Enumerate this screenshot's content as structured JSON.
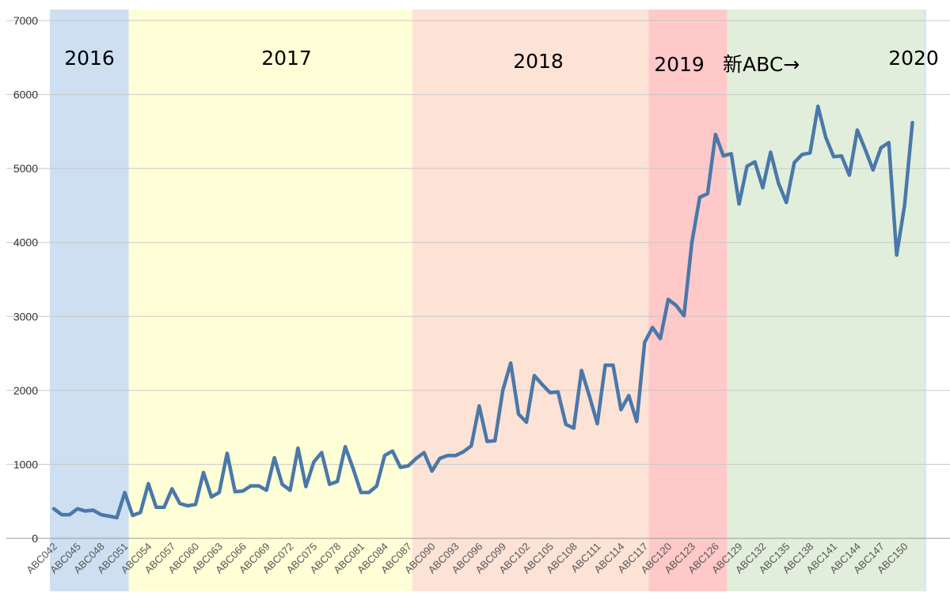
{
  "chart_data": {
    "type": "line",
    "title": "",
    "xlabel": "",
    "ylabel": "",
    "ylim": [
      0,
      7000
    ],
    "yticks": [
      0,
      1000,
      2000,
      3000,
      4000,
      5000,
      6000,
      7000
    ],
    "grid": true,
    "line_color": "#4a78a9",
    "x_start": 42,
    "x_prefix": "ABC",
    "x_tick_step": 3,
    "bands": [
      {
        "label": "2016",
        "from": 42,
        "to": 52,
        "color": "#cddff1"
      },
      {
        "label": "2017",
        "from": 52,
        "to": 88,
        "color": "#ffffd7"
      },
      {
        "label": "2018",
        "from": 88,
        "to": 118,
        "color": "#fde2d6"
      },
      {
        "label": "2019",
        "from": 118,
        "to": 128,
        "color": "#ffc9c9"
      },
      {
        "label": "新ABC→",
        "from": 128,
        "to": 153,
        "color": "#e1eedb"
      },
      {
        "label": "2020",
        "from": 153,
        "to": 155,
        "color": "#cfe9f9"
      }
    ],
    "values": [
      400,
      320,
      320,
      400,
      370,
      380,
      320,
      300,
      280,
      620,
      310,
      350,
      740,
      420,
      420,
      670,
      470,
      440,
      460,
      890,
      560,
      620,
      1150,
      630,
      640,
      710,
      710,
      650,
      1090,
      730,
      650,
      1220,
      700,
      1030,
      1160,
      730,
      770,
      1240,
      940,
      620,
      620,
      710,
      1120,
      1180,
      960,
      980,
      1080,
      1160,
      910,
      1080,
      1120,
      1120,
      1170,
      1250,
      1790,
      1310,
      1320,
      2000,
      2370,
      1680,
      1570,
      2200,
      2080,
      1970,
      1980,
      1540,
      1490,
      2270,
      1920,
      1550,
      2340,
      2340,
      1740,
      1930,
      1580,
      2650,
      2850,
      2700,
      3230,
      3150,
      3010,
      4000,
      4610,
      4660,
      5460,
      5170,
      5200,
      4520,
      5030,
      5090,
      4740,
      5220,
      4800,
      4540,
      5080,
      5190,
      5210,
      5840,
      5420,
      5160,
      5170,
      4910,
      5520,
      5260,
      4980,
      5280,
      5350,
      3830,
      4500,
      5620
    ]
  }
}
